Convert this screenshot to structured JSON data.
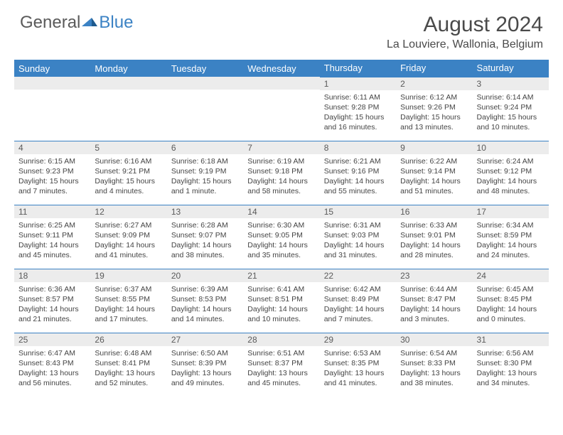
{
  "logo": {
    "part1": "General",
    "part2": "Blue"
  },
  "title": "August 2024",
  "location": "La Louviere, Wallonia, Belgium",
  "colors": {
    "header_bg": "#3b82c4",
    "header_text": "#ffffff",
    "daynum_bg": "#ececec",
    "text": "#4a4a4a",
    "border": "#3b82c4"
  },
  "weekdays": [
    "Sunday",
    "Monday",
    "Tuesday",
    "Wednesday",
    "Thursday",
    "Friday",
    "Saturday"
  ],
  "weeks": [
    [
      null,
      null,
      null,
      null,
      {
        "n": "1",
        "sr": "Sunrise: 6:11 AM",
        "ss": "Sunset: 9:28 PM",
        "dl": "Daylight: 15 hours and 16 minutes."
      },
      {
        "n": "2",
        "sr": "Sunrise: 6:12 AM",
        "ss": "Sunset: 9:26 PM",
        "dl": "Daylight: 15 hours and 13 minutes."
      },
      {
        "n": "3",
        "sr": "Sunrise: 6:14 AM",
        "ss": "Sunset: 9:24 PM",
        "dl": "Daylight: 15 hours and 10 minutes."
      }
    ],
    [
      {
        "n": "4",
        "sr": "Sunrise: 6:15 AM",
        "ss": "Sunset: 9:23 PM",
        "dl": "Daylight: 15 hours and 7 minutes."
      },
      {
        "n": "5",
        "sr": "Sunrise: 6:16 AM",
        "ss": "Sunset: 9:21 PM",
        "dl": "Daylight: 15 hours and 4 minutes."
      },
      {
        "n": "6",
        "sr": "Sunrise: 6:18 AM",
        "ss": "Sunset: 9:19 PM",
        "dl": "Daylight: 15 hours and 1 minute."
      },
      {
        "n": "7",
        "sr": "Sunrise: 6:19 AM",
        "ss": "Sunset: 9:18 PM",
        "dl": "Daylight: 14 hours and 58 minutes."
      },
      {
        "n": "8",
        "sr": "Sunrise: 6:21 AM",
        "ss": "Sunset: 9:16 PM",
        "dl": "Daylight: 14 hours and 55 minutes."
      },
      {
        "n": "9",
        "sr": "Sunrise: 6:22 AM",
        "ss": "Sunset: 9:14 PM",
        "dl": "Daylight: 14 hours and 51 minutes."
      },
      {
        "n": "10",
        "sr": "Sunrise: 6:24 AM",
        "ss": "Sunset: 9:12 PM",
        "dl": "Daylight: 14 hours and 48 minutes."
      }
    ],
    [
      {
        "n": "11",
        "sr": "Sunrise: 6:25 AM",
        "ss": "Sunset: 9:11 PM",
        "dl": "Daylight: 14 hours and 45 minutes."
      },
      {
        "n": "12",
        "sr": "Sunrise: 6:27 AM",
        "ss": "Sunset: 9:09 PM",
        "dl": "Daylight: 14 hours and 41 minutes."
      },
      {
        "n": "13",
        "sr": "Sunrise: 6:28 AM",
        "ss": "Sunset: 9:07 PM",
        "dl": "Daylight: 14 hours and 38 minutes."
      },
      {
        "n": "14",
        "sr": "Sunrise: 6:30 AM",
        "ss": "Sunset: 9:05 PM",
        "dl": "Daylight: 14 hours and 35 minutes."
      },
      {
        "n": "15",
        "sr": "Sunrise: 6:31 AM",
        "ss": "Sunset: 9:03 PM",
        "dl": "Daylight: 14 hours and 31 minutes."
      },
      {
        "n": "16",
        "sr": "Sunrise: 6:33 AM",
        "ss": "Sunset: 9:01 PM",
        "dl": "Daylight: 14 hours and 28 minutes."
      },
      {
        "n": "17",
        "sr": "Sunrise: 6:34 AM",
        "ss": "Sunset: 8:59 PM",
        "dl": "Daylight: 14 hours and 24 minutes."
      }
    ],
    [
      {
        "n": "18",
        "sr": "Sunrise: 6:36 AM",
        "ss": "Sunset: 8:57 PM",
        "dl": "Daylight: 14 hours and 21 minutes."
      },
      {
        "n": "19",
        "sr": "Sunrise: 6:37 AM",
        "ss": "Sunset: 8:55 PM",
        "dl": "Daylight: 14 hours and 17 minutes."
      },
      {
        "n": "20",
        "sr": "Sunrise: 6:39 AM",
        "ss": "Sunset: 8:53 PM",
        "dl": "Daylight: 14 hours and 14 minutes."
      },
      {
        "n": "21",
        "sr": "Sunrise: 6:41 AM",
        "ss": "Sunset: 8:51 PM",
        "dl": "Daylight: 14 hours and 10 minutes."
      },
      {
        "n": "22",
        "sr": "Sunrise: 6:42 AM",
        "ss": "Sunset: 8:49 PM",
        "dl": "Daylight: 14 hours and 7 minutes."
      },
      {
        "n": "23",
        "sr": "Sunrise: 6:44 AM",
        "ss": "Sunset: 8:47 PM",
        "dl": "Daylight: 14 hours and 3 minutes."
      },
      {
        "n": "24",
        "sr": "Sunrise: 6:45 AM",
        "ss": "Sunset: 8:45 PM",
        "dl": "Daylight: 14 hours and 0 minutes."
      }
    ],
    [
      {
        "n": "25",
        "sr": "Sunrise: 6:47 AM",
        "ss": "Sunset: 8:43 PM",
        "dl": "Daylight: 13 hours and 56 minutes."
      },
      {
        "n": "26",
        "sr": "Sunrise: 6:48 AM",
        "ss": "Sunset: 8:41 PM",
        "dl": "Daylight: 13 hours and 52 minutes."
      },
      {
        "n": "27",
        "sr": "Sunrise: 6:50 AM",
        "ss": "Sunset: 8:39 PM",
        "dl": "Daylight: 13 hours and 49 minutes."
      },
      {
        "n": "28",
        "sr": "Sunrise: 6:51 AM",
        "ss": "Sunset: 8:37 PM",
        "dl": "Daylight: 13 hours and 45 minutes."
      },
      {
        "n": "29",
        "sr": "Sunrise: 6:53 AM",
        "ss": "Sunset: 8:35 PM",
        "dl": "Daylight: 13 hours and 41 minutes."
      },
      {
        "n": "30",
        "sr": "Sunrise: 6:54 AM",
        "ss": "Sunset: 8:33 PM",
        "dl": "Daylight: 13 hours and 38 minutes."
      },
      {
        "n": "31",
        "sr": "Sunrise: 6:56 AM",
        "ss": "Sunset: 8:30 PM",
        "dl": "Daylight: 13 hours and 34 minutes."
      }
    ]
  ]
}
